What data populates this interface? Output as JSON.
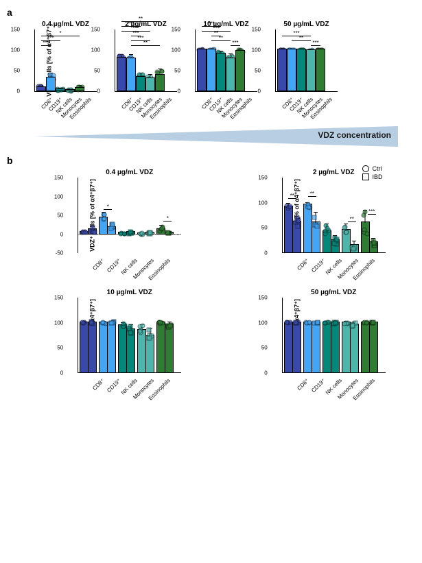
{
  "panel_a": {
    "label": "a",
    "y_label": "VDZ⁺ cells [% of α4⁺β7⁺]",
    "y_ticks_full": [
      0,
      50,
      100,
      150
    ],
    "y_max": 150,
    "categories": [
      "CD8⁺",
      "CD19⁺",
      "NK cells",
      "Monocytes",
      "Eosinophils"
    ],
    "colors": [
      "#3949ab",
      "#42a5f5",
      "#00897b",
      "#4db6ac",
      "#2e7d32"
    ],
    "charts": [
      {
        "title": "0.4 µg/mL VDZ",
        "values": [
          8,
          32,
          3,
          2,
          7
        ],
        "errors": [
          5,
          12,
          3,
          2,
          6
        ],
        "sigs": [
          {
            "from": 0,
            "to": 1,
            "level": 0,
            "text": "***"
          },
          {
            "from": 0,
            "to": 2,
            "level": 1,
            "text": "***"
          },
          {
            "from": 0,
            "to": 4,
            "level": 2,
            "text": "*"
          }
        ]
      },
      {
        "title": "2 µg/mL VDZ",
        "values": [
          80,
          78,
          33,
          30,
          38
        ],
        "errors": [
          8,
          10,
          10,
          10,
          15
        ],
        "sigs": [
          {
            "from": 1,
            "to": 4,
            "level": 0,
            "text": "**"
          },
          {
            "from": 1,
            "to": 3,
            "level": 1,
            "text": "***"
          },
          {
            "from": 1,
            "to": 2,
            "level": 2,
            "text": "***"
          },
          {
            "from": 0,
            "to": 3,
            "level": 3,
            "text": "***"
          },
          {
            "from": 0,
            "to": 2,
            "level": 4,
            "text": "***"
          },
          {
            "from": 0,
            "to": 4,
            "level": 5,
            "text": "**"
          }
        ]
      },
      {
        "title": "10 µg/mL VDZ",
        "values": [
          100,
          100,
          90,
          78,
          97
        ],
        "errors": [
          2,
          2,
          6,
          12,
          4
        ],
        "sigs": [
          {
            "from": 3,
            "to": 4,
            "level": 0,
            "text": "***"
          },
          {
            "from": 1,
            "to": 3,
            "level": 1,
            "text": "**"
          },
          {
            "from": 1,
            "to": 2,
            "level": 2,
            "text": "**"
          },
          {
            "from": 0,
            "to": 3,
            "level": 3,
            "text": "***"
          },
          {
            "from": 0,
            "to": 2,
            "level": 4,
            "text": "***"
          }
        ]
      },
      {
        "title": "50 µg/mL VDZ",
        "values": [
          100,
          100,
          100,
          98,
          100
        ],
        "errors": [
          1,
          1,
          1,
          3,
          1
        ],
        "sigs": [
          {
            "from": 3,
            "to": 4,
            "level": 0,
            "text": "***"
          },
          {
            "from": 1,
            "to": 3,
            "level": 1,
            "text": "**"
          },
          {
            "from": 0,
            "to": 3,
            "level": 2,
            "text": "***"
          }
        ]
      }
    ]
  },
  "gradient_label": "VDZ concentration",
  "panel_b": {
    "label": "b",
    "y_label": "VDZ⁺ cells [% of α4⁺β7⁺]",
    "categories": [
      "CD8⁺",
      "CD19⁺",
      "NK cells",
      "Monocytes",
      "Eosinophils"
    ],
    "colors": [
      "#3949ab",
      "#42a5f5",
      "#00897b",
      "#4db6ac",
      "#2e7d32"
    ],
    "legend": [
      {
        "label": "Ctrl",
        "shape": "circle"
      },
      {
        "label": "IBD",
        "shape": "square"
      }
    ],
    "charts": [
      {
        "title": "0.4 µg/mL VDZ",
        "y_ticks": [
          -50,
          0,
          50,
          100,
          150
        ],
        "y_min": -50,
        "y_max": 150,
        "pairs": [
          {
            "ctrl": 5,
            "ibd": 12,
            "e1": 4,
            "e2": 8
          },
          {
            "ctrl": 42,
            "ibd": 18,
            "e1": 15,
            "e2": 10,
            "sig": "*"
          },
          {
            "ctrl": 2,
            "ibd": 4,
            "e1": 3,
            "e2": 4
          },
          {
            "ctrl": 1,
            "ibd": 3,
            "e1": 2,
            "e2": 3
          },
          {
            "ctrl": 12,
            "ibd": 3,
            "e1": 10,
            "e2": 3,
            "sig": "*"
          }
        ]
      },
      {
        "title": "2 µg/mL VDZ",
        "y_ticks": [
          0,
          50,
          100,
          150
        ],
        "y_min": 0,
        "y_max": 150,
        "pairs": [
          {
            "ctrl": 92,
            "ibd": 62,
            "e1": 6,
            "e2": 10,
            "sig": "**"
          },
          {
            "ctrl": 95,
            "ibd": 60,
            "e1": 5,
            "e2": 20,
            "sig": "**"
          },
          {
            "ctrl": 42,
            "ibd": 24,
            "e1": 15,
            "e2": 10
          },
          {
            "ctrl": 45,
            "ibd": 15,
            "e1": 12,
            "e2": 8,
            "sig": "**"
          },
          {
            "ctrl": 60,
            "ibd": 20,
            "e1": 25,
            "e2": 8,
            "sig": "***"
          }
        ]
      },
      {
        "title": "10 µg/mL VDZ",
        "y_ticks": [
          0,
          50,
          100,
          150
        ],
        "y_min": 0,
        "y_max": 150,
        "pairs": [
          {
            "ctrl": 100,
            "ibd": 100,
            "e1": 2,
            "e2": 2
          },
          {
            "ctrl": 100,
            "ibd": 100,
            "e1": 2,
            "e2": 2
          },
          {
            "ctrl": 94,
            "ibd": 86,
            "e1": 5,
            "e2": 10
          },
          {
            "ctrl": 85,
            "ibd": 72,
            "e1": 10,
            "e2": 15
          },
          {
            "ctrl": 100,
            "ibd": 96,
            "e1": 2,
            "e2": 5
          }
        ]
      },
      {
        "title": "50 µg/mL VDZ",
        "y_ticks": [
          0,
          50,
          100,
          150
        ],
        "y_min": 0,
        "y_max": 150,
        "pairs": [
          {
            "ctrl": 100,
            "ibd": 100,
            "e1": 1,
            "e2": 1
          },
          {
            "ctrl": 100,
            "ibd": 100,
            "e1": 1,
            "e2": 1
          },
          {
            "ctrl": 100,
            "ibd": 100,
            "e1": 1,
            "e2": 2
          },
          {
            "ctrl": 100,
            "ibd": 96,
            "e1": 2,
            "e2": 5
          },
          {
            "ctrl": 100,
            "ibd": 100,
            "e1": 1,
            "e2": 1
          }
        ]
      }
    ]
  }
}
